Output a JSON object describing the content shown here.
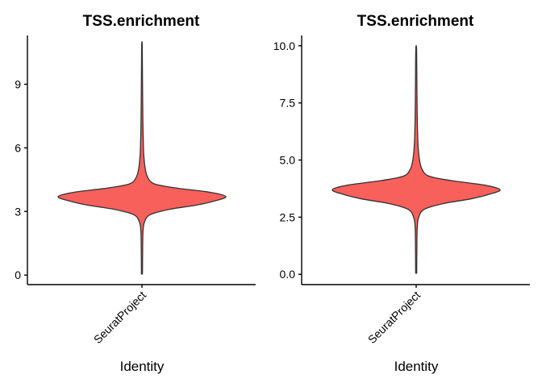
{
  "chart_data": [
    {
      "type": "violin",
      "title": "TSS.enrichment",
      "xlabel": "Identity",
      "ylabel": "",
      "categories": [
        "SeuratProject"
      ],
      "ylim": [
        -0.45,
        11.3
      ],
      "yticks": [
        0,
        3,
        6,
        9
      ],
      "ytick_labels": [
        "0",
        "3",
        "6",
        "9"
      ],
      "fill_color": "#F8605C",
      "outline_color": "#333333",
      "distribution": {
        "min": 0.05,
        "max": 10.9,
        "mode": 3.7,
        "density": [
          [
            0.05,
            0.006
          ],
          [
            1.0,
            0.008
          ],
          [
            2.0,
            0.012
          ],
          [
            2.5,
            0.03
          ],
          [
            2.85,
            0.1
          ],
          [
            3.1,
            0.33
          ],
          [
            3.3,
            0.65
          ],
          [
            3.5,
            0.87
          ],
          [
            3.7,
            1.0
          ],
          [
            3.9,
            0.82
          ],
          [
            4.1,
            0.42
          ],
          [
            4.3,
            0.15
          ],
          [
            4.6,
            0.07
          ],
          [
            5.0,
            0.04
          ],
          [
            5.5,
            0.025
          ],
          [
            6.0,
            0.018
          ],
          [
            7.0,
            0.012
          ],
          [
            8.0,
            0.009
          ],
          [
            9.0,
            0.007
          ],
          [
            10.0,
            0.005
          ],
          [
            10.9,
            0.003
          ]
        ]
      }
    },
    {
      "type": "violin",
      "title": "TSS.enrichment",
      "xlabel": "Identity",
      "ylabel": "",
      "categories": [
        "SeuratProject"
      ],
      "ylim": [
        -0.45,
        10.45
      ],
      "yticks": [
        0,
        2.5,
        5,
        7.5,
        10
      ],
      "ytick_labels": [
        "0.0",
        "2.5",
        "5.0",
        "7.5",
        "10.0"
      ],
      "fill_color": "#F8605C",
      "outline_color": "#333333",
      "distribution": {
        "min": 0.05,
        "max": 9.9,
        "mode": 3.7,
        "density": [
          [
            0.05,
            0.006
          ],
          [
            1.0,
            0.008
          ],
          [
            2.0,
            0.012
          ],
          [
            2.5,
            0.03
          ],
          [
            2.85,
            0.1
          ],
          [
            3.1,
            0.33
          ],
          [
            3.3,
            0.65
          ],
          [
            3.5,
            0.87
          ],
          [
            3.7,
            1.0
          ],
          [
            3.9,
            0.82
          ],
          [
            4.1,
            0.42
          ],
          [
            4.3,
            0.15
          ],
          [
            4.6,
            0.07
          ],
          [
            5.0,
            0.04
          ],
          [
            5.5,
            0.025
          ],
          [
            6.0,
            0.018
          ],
          [
            7.0,
            0.012
          ],
          [
            8.0,
            0.009
          ],
          [
            9.0,
            0.007
          ],
          [
            9.9,
            0.004
          ]
        ]
      }
    }
  ]
}
